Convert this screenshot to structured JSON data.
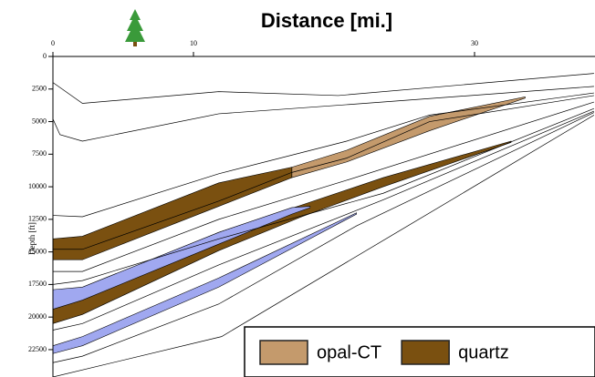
{
  "chart_data": {
    "type": "cross-section",
    "title": "Distance [mi.]",
    "y_label": "Depth [ft]",
    "xlim": [
      0,
      38.5
    ],
    "ylim": [
      0,
      24600
    ],
    "xticks": [
      0,
      10,
      30
    ],
    "yticks": [
      0,
      2500,
      5000,
      7500,
      10000,
      12500,
      15000,
      17500,
      20000,
      22500
    ],
    "horizons": [
      {
        "x": [
          0,
          2.1,
          11.8,
          20.3,
          38.5
        ],
        "values": [
          2000,
          3600,
          2700,
          3000,
          1300
        ]
      },
      {
        "x": [
          0,
          0.5,
          2.1,
          11.8,
          20.9,
          38.5
        ],
        "values": [
          4800,
          6000,
          6500,
          4400,
          3700,
          2300
        ]
      },
      {
        "x": [
          0,
          2.1,
          11.8,
          20.9,
          26.8,
          38.5
        ],
        "values": [
          12200,
          12300,
          9000,
          6500,
          4500,
          2800
        ]
      },
      {
        "x": [
          0,
          2.1,
          11.8,
          17,
          20.9,
          26.8,
          38.5
        ],
        "values": [
          14800,
          14800,
          11100,
          8900,
          7800,
          5000,
          3000
        ]
      },
      {
        "x": [
          0,
          2.1,
          11.8,
          20.9,
          38.5
        ],
        "values": [
          16500,
          16500,
          12500,
          9500,
          3500
        ]
      },
      {
        "x": [
          0,
          2.1,
          11.8,
          23.5,
          38.5
        ],
        "values": [
          17500,
          17200,
          14000,
          10500,
          4000
        ]
      },
      {
        "x": [
          0,
          2.1,
          11.8,
          23.5,
          38.5
        ],
        "values": [
          21000,
          20500,
          16000,
          11000,
          4200
        ]
      },
      {
        "x": [
          0,
          2.1,
          11.8,
          21.6,
          38.5
        ],
        "values": [
          23500,
          23000,
          19000,
          13000,
          4300
        ]
      },
      {
        "x": [
          0,
          12,
          38.5
        ],
        "values": [
          24600,
          21500,
          4500
        ]
      }
    ],
    "series": [
      {
        "name": "opal-CT",
        "color": "#c49a6c",
        "bodies": [
          {
            "x": [
              17,
              20.9,
              26.8,
              33.6
            ],
            "top": [
              8500,
              7200,
              4600,
              3100
            ],
            "bottom": [
              9300,
              8100,
              5700,
              3200
            ]
          }
        ]
      },
      {
        "name": "quartz",
        "color": "#7a5010",
        "bodies": [
          {
            "x": [
              0,
              2.1,
              11.8,
              17
            ],
            "top": [
              14000,
              13800,
              9700,
              8500
            ],
            "bottom": [
              15600,
              15600,
              11500,
              9300
            ]
          },
          {
            "x": [
              0,
              2.1,
              11.8,
              17.7,
              23.5,
              32.6
            ],
            "top": [
              18700,
              18000,
              13500,
              11400,
              9300,
              6500
            ],
            "bottom": [
              20500,
              19800,
              14900,
              12300,
              10000,
              6600
            ]
          }
        ]
      },
      {
        "color": "#a0a8f0",
        "bodies": [
          {
            "x": [
              0,
              2.1,
              11.8,
              17,
              18.3
            ],
            "top": [
              17900,
              17700,
              13500,
              11600,
              11500
            ],
            "bottom": [
              19400,
              18700,
              14400,
              12100,
              11600
            ]
          },
          {
            "x": [
              0,
              2.1,
              11.8,
              21.6
            ],
            "top": [
              22200,
              21500,
              17000,
              12000
            ],
            "bottom": [
              22800,
              22200,
              17700,
              12100
            ]
          }
        ]
      }
    ],
    "legend": "bottom-right"
  }
}
